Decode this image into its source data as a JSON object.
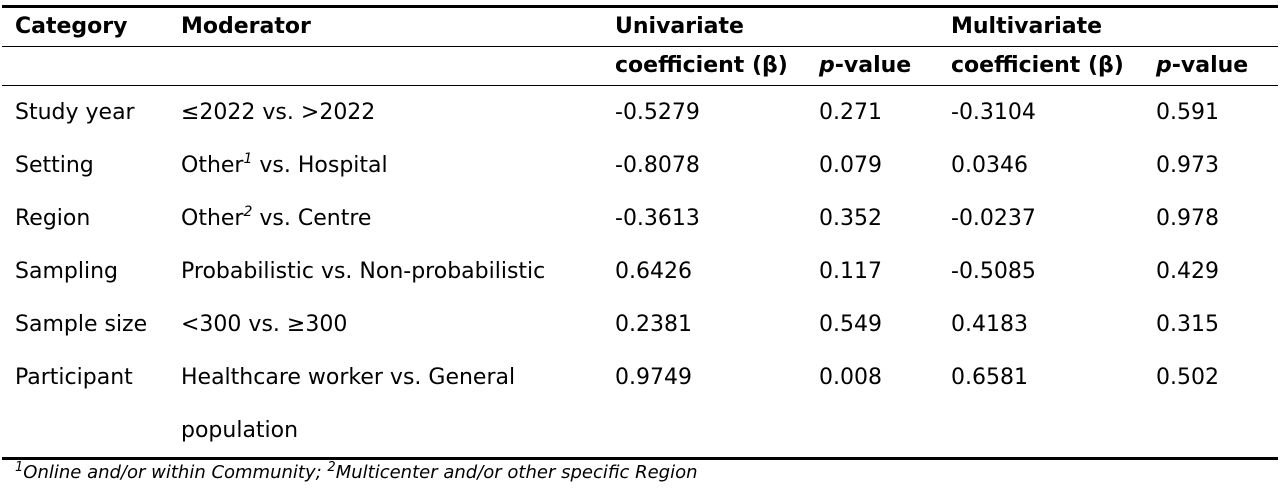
{
  "header": {
    "category": "Category",
    "moderator": "Moderator",
    "univariate": "Univariate",
    "multivariate": "Multivariate",
    "coefficient": "coefficient (β)",
    "p_italic": "p",
    "p_suffix": "-value"
  },
  "rows": [
    {
      "category": "Study year",
      "moderator": "≤2022 vs. >2022",
      "uni_coef": "-0.5279",
      "uni_p": "0.271",
      "multi_coef": "-0.3104",
      "multi_p": "0.591"
    },
    {
      "category": "Setting",
      "mod_pre": "Other",
      "mod_sup": "1",
      "mod_post": " vs. Hospital",
      "uni_coef": "-0.8078",
      "uni_p": "0.079",
      "multi_coef": "0.0346",
      "multi_p": "0.973"
    },
    {
      "category": "Region",
      "mod_pre": "Other",
      "mod_sup": "2",
      "mod_post": " vs. Centre",
      "uni_coef": "-0.3613",
      "uni_p": "0.352",
      "multi_coef": "-0.0237",
      "multi_p": "0.978"
    },
    {
      "category": "Sampling",
      "moderator": "Probabilistic vs. Non-probabilistic",
      "uni_coef": "0.6426",
      "uni_p": "0.117",
      "multi_coef": "-0.5085",
      "multi_p": "0.429"
    },
    {
      "category": "Sample size",
      "moderator": "<300 vs. ≥300",
      "uni_coef": "0.2381",
      "uni_p": "0.549",
      "multi_coef": "0.4183",
      "multi_p": "0.315"
    },
    {
      "category": "Participant",
      "mod_line1": "Healthcare worker vs. General",
      "mod_line2": "population",
      "uni_coef": "0.9749",
      "uni_p": "0.008",
      "multi_coef": "0.6581",
      "multi_p": "0.502"
    }
  ],
  "footnote": {
    "sup1": "1",
    "text1": "Online and/or within Community; ",
    "sup2": "2",
    "text2": "Multicenter and/or other specific Region"
  }
}
